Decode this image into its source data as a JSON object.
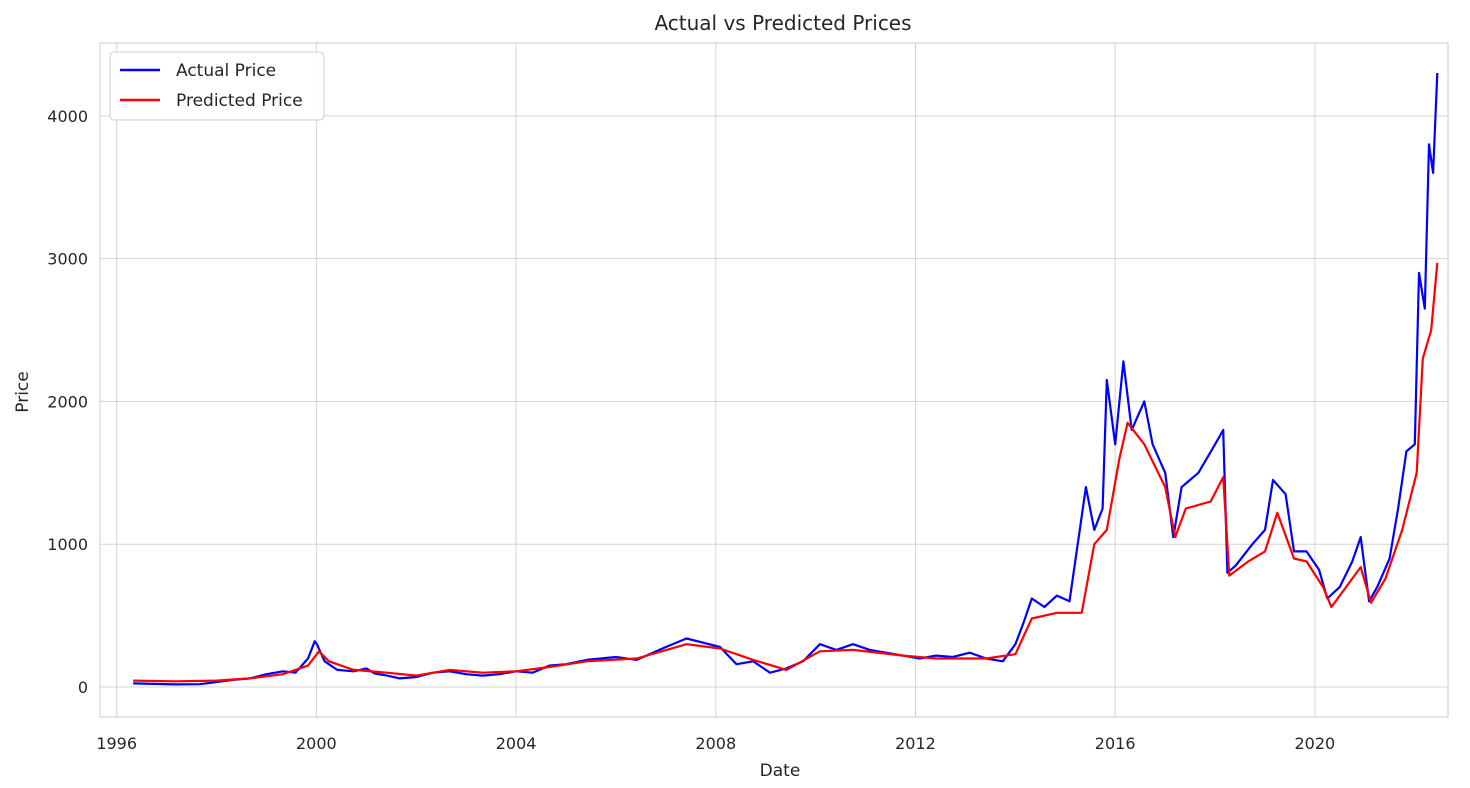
{
  "chart_data": {
    "type": "line",
    "title": "Actual vs Predicted Prices",
    "xlabel": "Date",
    "ylabel": "Price",
    "xlim": [
      "1995-09-01",
      "2022-09-01"
    ],
    "ylim": [
      -210,
      4510
    ],
    "x_ticks": [
      "1996",
      "2000",
      "2004",
      "2008",
      "2012",
      "2016",
      "2020"
    ],
    "y_ticks": [
      "0",
      "1000",
      "2000",
      "3000",
      "4000"
    ],
    "grid": true,
    "legend_position": "upper left",
    "series": [
      {
        "name": "Actual Price",
        "color": "#0000ff",
        "points": [
          [
            "1996-05-01",
            25
          ],
          [
            "1996-10-01",
            22
          ],
          [
            "1997-03-01",
            18
          ],
          [
            "1997-09-01",
            20
          ],
          [
            "1998-01-01",
            35
          ],
          [
            "1998-05-01",
            50
          ],
          [
            "1998-09-01",
            60
          ],
          [
            "1999-01-01",
            90
          ],
          [
            "1999-05-01",
            110
          ],
          [
            "1999-08-01",
            100
          ],
          [
            "1999-11-01",
            200
          ],
          [
            "1999-12-20",
            320
          ],
          [
            "2000-01-05",
            300
          ],
          [
            "2000-03-01",
            180
          ],
          [
            "2000-06-01",
            120
          ],
          [
            "2000-10-01",
            110
          ],
          [
            "2001-01-01",
            130
          ],
          [
            "2001-03-01",
            95
          ],
          [
            "2001-06-01",
            80
          ],
          [
            "2001-09-01",
            60
          ],
          [
            "2002-01-01",
            70
          ],
          [
            "2002-05-01",
            100
          ],
          [
            "2002-09-01",
            110
          ],
          [
            "2003-01-01",
            90
          ],
          [
            "2003-05-01",
            80
          ],
          [
            "2003-09-01",
            90
          ],
          [
            "2004-01-01",
            110
          ],
          [
            "2004-05-01",
            100
          ],
          [
            "2004-09-01",
            150
          ],
          [
            "2005-01-01",
            160
          ],
          [
            "2005-06-01",
            190
          ],
          [
            "2006-01-01",
            210
          ],
          [
            "2006-06-01",
            190
          ],
          [
            "2007-01-01",
            280
          ],
          [
            "2007-06-01",
            340
          ],
          [
            "2007-10-01",
            310
          ],
          [
            "2008-02-01",
            280
          ],
          [
            "2008-06-01",
            160
          ],
          [
            "2008-10-01",
            180
          ],
          [
            "2009-02-01",
            100
          ],
          [
            "2009-06-01",
            130
          ],
          [
            "2009-10-01",
            180
          ],
          [
            "2010-02-01",
            300
          ],
          [
            "2010-06-01",
            260
          ],
          [
            "2010-10-01",
            300
          ],
          [
            "2011-02-01",
            260
          ],
          [
            "2011-06-01",
            240
          ],
          [
            "2011-10-01",
            220
          ],
          [
            "2012-02-01",
            200
          ],
          [
            "2012-06-01",
            220
          ],
          [
            "2012-10-01",
            210
          ],
          [
            "2013-02-01",
            240
          ],
          [
            "2013-06-01",
            200
          ],
          [
            "2013-10-01",
            180
          ],
          [
            "2014-01-01",
            300
          ],
          [
            "2014-03-01",
            450
          ],
          [
            "2014-05-01",
            620
          ],
          [
            "2014-08-01",
            560
          ],
          [
            "2014-11-01",
            640
          ],
          [
            "2015-02-01",
            600
          ],
          [
            "2015-06-01",
            1400
          ],
          [
            "2015-08-01",
            1100
          ],
          [
            "2015-10-01",
            1250
          ],
          [
            "2015-11-01",
            2150
          ],
          [
            "2016-01-01",
            1700
          ],
          [
            "2016-03-01",
            2280
          ],
          [
            "2016-05-01",
            1800
          ],
          [
            "2016-08-01",
            2000
          ],
          [
            "2016-10-01",
            1700
          ],
          [
            "2017-01-01",
            1500
          ],
          [
            "2017-03-01",
            1050
          ],
          [
            "2017-05-01",
            1400
          ],
          [
            "2017-09-01",
            1500
          ],
          [
            "2018-01-01",
            1700
          ],
          [
            "2018-03-01",
            1800
          ],
          [
            "2018-04-01",
            800
          ],
          [
            "2018-06-01",
            850
          ],
          [
            "2018-10-01",
            1000
          ],
          [
            "2019-01-01",
            1100
          ],
          [
            "2019-03-01",
            1450
          ],
          [
            "2019-06-01",
            1350
          ],
          [
            "2019-08-01",
            950
          ],
          [
            "2019-11-01",
            950
          ],
          [
            "2020-02-01",
            820
          ],
          [
            "2020-04-01",
            620
          ],
          [
            "2020-07-01",
            700
          ],
          [
            "2020-10-01",
            880
          ],
          [
            "2020-12-01",
            1050
          ],
          [
            "2021-02-01",
            600
          ],
          [
            "2021-04-01",
            700
          ],
          [
            "2021-07-01",
            900
          ],
          [
            "2021-09-01",
            1250
          ],
          [
            "2021-11-01",
            1650
          ],
          [
            "2022-01-01",
            1700
          ],
          [
            "2022-02-01",
            2900
          ],
          [
            "2022-03-15",
            2650
          ],
          [
            "2022-04-15",
            3800
          ],
          [
            "2022-05-15",
            3600
          ],
          [
            "2022-06-15",
            4300
          ]
        ]
      },
      {
        "name": "Predicted Price",
        "color": "#ff0000",
        "points": [
          [
            "1996-05-01",
            45
          ],
          [
            "1997-03-01",
            40
          ],
          [
            "1998-01-01",
            45
          ],
          [
            "1998-09-01",
            60
          ],
          [
            "1999-05-01",
            90
          ],
          [
            "1999-11-01",
            150
          ],
          [
            "2000-01-20",
            250
          ],
          [
            "2000-04-01",
            180
          ],
          [
            "2000-10-01",
            120
          ],
          [
            "2001-06-01",
            100
          ],
          [
            "2002-01-01",
            80
          ],
          [
            "2002-09-01",
            120
          ],
          [
            "2003-05-01",
            100
          ],
          [
            "2004-01-01",
            110
          ],
          [
            "2004-09-01",
            140
          ],
          [
            "2005-06-01",
            180
          ],
          [
            "2006-06-01",
            200
          ],
          [
            "2007-06-01",
            300
          ],
          [
            "2008-02-01",
            270
          ],
          [
            "2008-10-01",
            190
          ],
          [
            "2009-06-01",
            120
          ],
          [
            "2010-02-01",
            250
          ],
          [
            "2010-10-01",
            260
          ],
          [
            "2011-10-01",
            220
          ],
          [
            "2012-06-01",
            200
          ],
          [
            "2013-06-01",
            200
          ],
          [
            "2014-01-01",
            230
          ],
          [
            "2014-05-01",
            480
          ],
          [
            "2014-11-01",
            520
          ],
          [
            "2015-05-01",
            520
          ],
          [
            "2015-08-01",
            1000
          ],
          [
            "2015-11-01",
            1100
          ],
          [
            "2016-02-01",
            1600
          ],
          [
            "2016-04-01",
            1850
          ],
          [
            "2016-08-01",
            1700
          ],
          [
            "2017-01-01",
            1400
          ],
          [
            "2017-03-15",
            1050
          ],
          [
            "2017-06-01",
            1250
          ],
          [
            "2017-12-01",
            1300
          ],
          [
            "2018-03-01",
            1470
          ],
          [
            "2018-04-15",
            780
          ],
          [
            "2018-09-01",
            880
          ],
          [
            "2019-01-01",
            950
          ],
          [
            "2019-04-01",
            1220
          ],
          [
            "2019-08-01",
            900
          ],
          [
            "2019-11-01",
            880
          ],
          [
            "2020-03-01",
            700
          ],
          [
            "2020-05-01",
            560
          ],
          [
            "2020-08-01",
            680
          ],
          [
            "2020-12-01",
            840
          ],
          [
            "2021-02-15",
            590
          ],
          [
            "2021-06-01",
            760
          ],
          [
            "2021-10-01",
            1100
          ],
          [
            "2022-01-15",
            1500
          ],
          [
            "2022-03-01",
            2300
          ],
          [
            "2022-05-01",
            2500
          ],
          [
            "2022-06-15",
            2970
          ]
        ]
      }
    ]
  }
}
